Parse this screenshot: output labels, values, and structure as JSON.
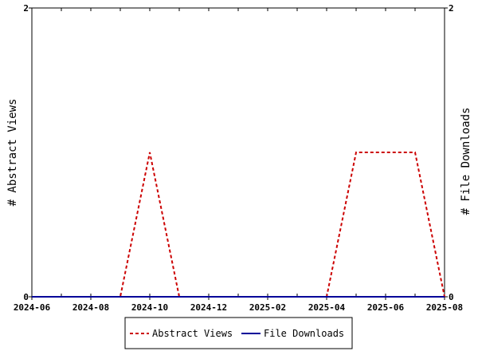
{
  "chart_data": {
    "type": "line",
    "x": [
      "2024-06",
      "2024-07",
      "2024-08",
      "2024-09",
      "2024-10",
      "2024-11",
      "2024-12",
      "2025-01",
      "2025-02",
      "2025-03",
      "2025-04",
      "2025-05",
      "2025-06",
      "2025-07",
      "2025-08"
    ],
    "x_ticks": [
      "2024-06",
      "2024-08",
      "2024-10",
      "2024-12",
      "2025-02",
      "2025-04",
      "2025-06",
      "2025-08"
    ],
    "series": [
      {
        "name": "Abstract Views",
        "values": [
          0,
          0,
          0,
          0,
          1,
          0,
          0,
          0,
          0,
          0,
          0,
          1,
          1,
          1,
          0
        ],
        "color": "#cc0000",
        "style": "dashed",
        "axis": "left"
      },
      {
        "name": "File Downloads",
        "values": [
          0,
          0,
          0,
          0,
          0,
          0,
          0,
          0,
          0,
          0,
          0,
          0,
          0,
          0,
          0
        ],
        "color": "#000099",
        "style": "solid",
        "axis": "right"
      }
    ],
    "ylabel": "# Abstract Views",
    "ylabel_right": "# File Downloads",
    "ylim": [
      0,
      2
    ],
    "ylim_right": [
      0,
      2
    ],
    "y_ticks": [
      "0",
      "2"
    ],
    "y_ticks_right": [
      "0",
      "2"
    ],
    "grid": false,
    "legend_position": "bottom-center"
  }
}
